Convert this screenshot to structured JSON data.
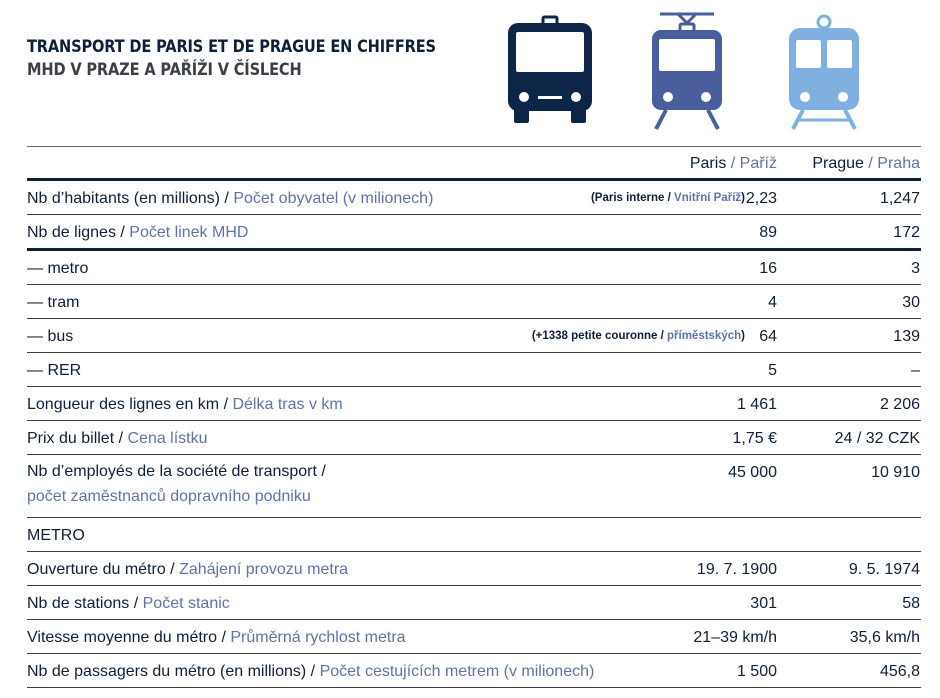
{
  "title": {
    "fr": "TRANSPORT DE PARIS ET DE PRAGUE EN CHIFFRES",
    "cz": "MHD V PRAZE A PAŘÍŽI V ČÍSLECH"
  },
  "icons": [
    {
      "name": "bus-icon",
      "color": "#0d2547"
    },
    {
      "name": "tram-icon",
      "color": "#4a5e9c"
    },
    {
      "name": "train-icon",
      "color": "#7fb0e0"
    }
  ],
  "header": {
    "paris_fr": "Paris",
    "paris_cz": "Paříž",
    "prague_fr": "Prague",
    "prague_cz": "Praha",
    "sep": " / "
  },
  "rows": {
    "inhabitants": {
      "fr": "Nb d’habitants (en millions) / ",
      "cz": "Počet obyvatel (v milionech)",
      "note_fr": "(Paris interne / ",
      "note_cz": "Vnitřní Paříž",
      "note_end": ")",
      "paris": "2,23",
      "prague": "1,247"
    },
    "lines": {
      "fr": "Nb de lignes / ",
      "cz": "Počet linek MHD",
      "paris": "89",
      "prague": "172"
    },
    "metro": {
      "fr": "— metro",
      "paris": "16",
      "prague": "3"
    },
    "tram": {
      "fr": "— tram",
      "paris": "4",
      "prague": "30"
    },
    "bus": {
      "fr": "— bus",
      "note_fr": "(+1338 petite couronne / ",
      "note_cz": "příměstských",
      "note_end": ")",
      "paris": "64",
      "prague": "139"
    },
    "rer": {
      "fr": "— RER",
      "paris": "5",
      "prague": "–"
    },
    "length": {
      "fr": "Longueur des lignes en km / ",
      "cz": "Délka tras v km",
      "paris": "1 461",
      "prague": "2 206"
    },
    "ticket": {
      "fr": "Prix du billet / ",
      "cz": "Cena lístku",
      "paris": "1,75 €",
      "prague": "24 / 32 CZK"
    },
    "employees": {
      "fr": "Nb d’employés de la société de transport /",
      "cz": "počet zaměstnanců dopravního podniku",
      "paris": "45 000",
      "prague": "10 910"
    },
    "section": {
      "fr": "METRO"
    },
    "opening": {
      "fr": "Ouverture du métro / ",
      "cz": "Zahájení provozu metra",
      "paris": "19. 7. 1900",
      "prague": "9. 5. 1974"
    },
    "stations": {
      "fr": "Nb de stations / ",
      "cz": "Počet stanic",
      "paris": "301",
      "prague": "58"
    },
    "speed": {
      "fr": "Vitesse moyenne du métro / ",
      "cz": "Průměrná rychlost metra",
      "paris": "21–39 km/h",
      "prague": "35,6 km/h"
    },
    "passengers": {
      "fr": "Nb de passagers du métro (en millions) / ",
      "cz": "Počet cestujících metrem (v milionech)",
      "paris": "1 500",
      "prague": "456,8"
    }
  }
}
